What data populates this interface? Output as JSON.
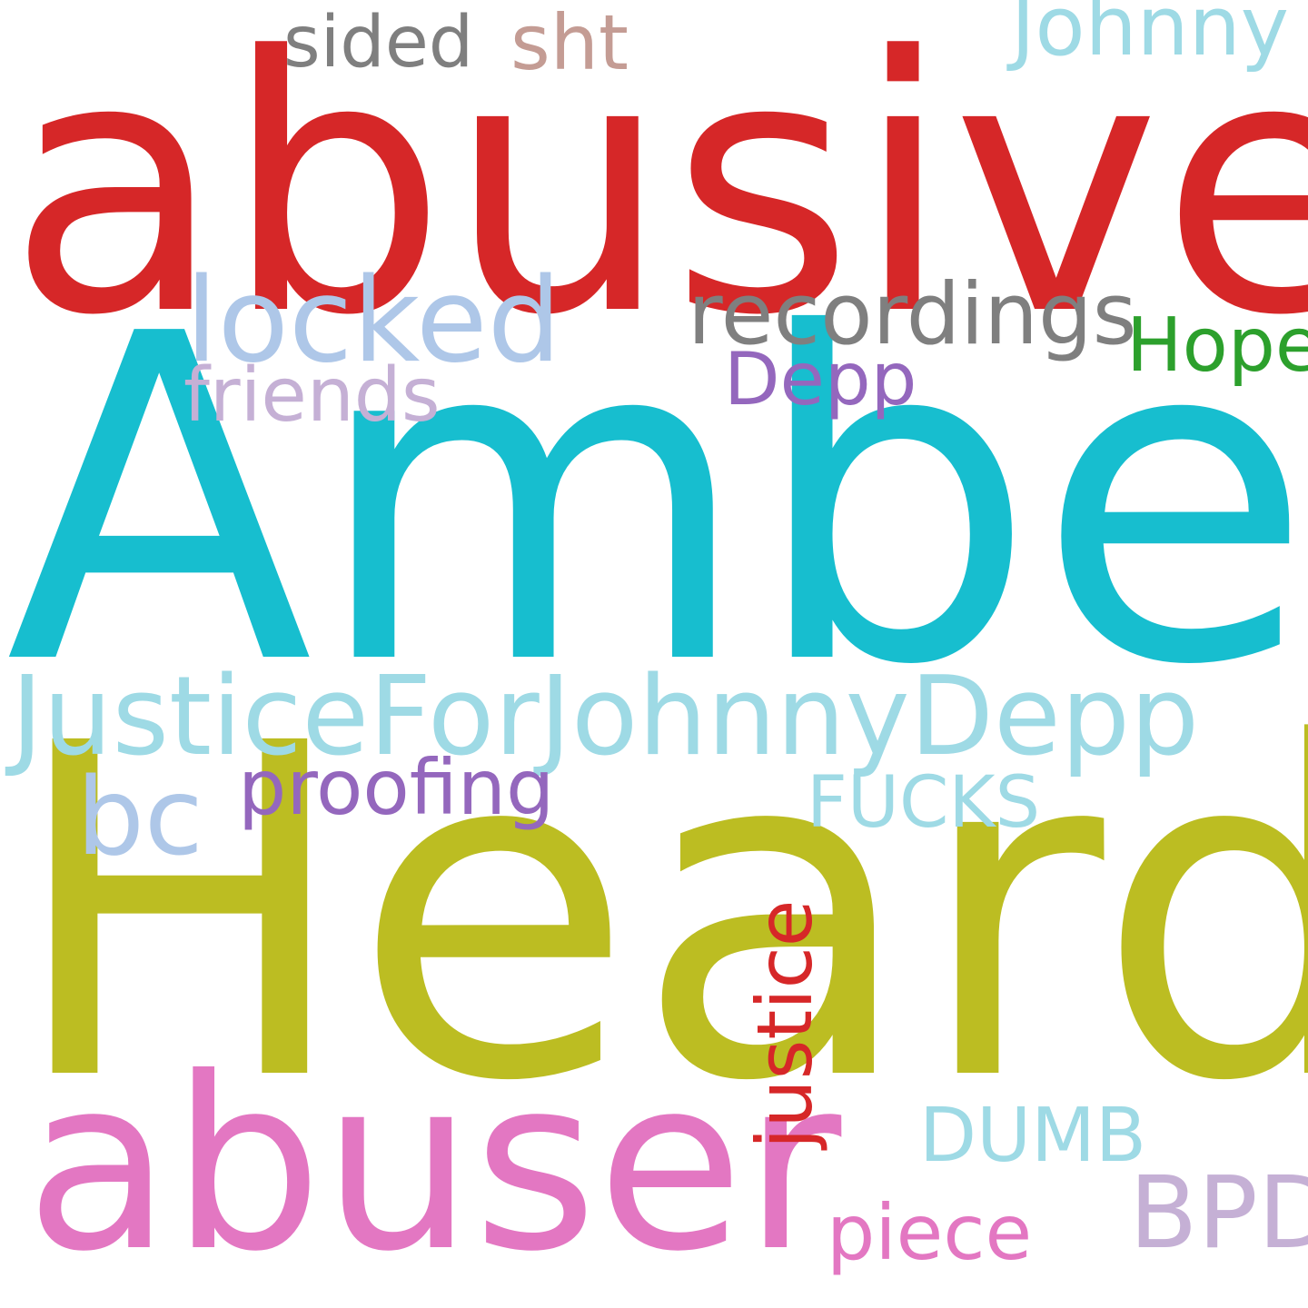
{
  "background": "#ffffff",
  "words": {
    "abusive": {
      "text": "abusive",
      "color": "#d62728"
    },
    "amber": {
      "text": "Amber",
      "color": "#17becf"
    },
    "heard": {
      "text": "Heard",
      "color": "#bcbd22"
    },
    "abuser": {
      "text": "abuser",
      "color": "#e377c2"
    },
    "justicefor": {
      "text": "JusticeForJohnnyDepp",
      "color": "#9edae5"
    },
    "locked": {
      "text": "locked",
      "color": "#aec7e8"
    },
    "recordings": {
      "text": "recordings",
      "color": "#7f7f7f"
    },
    "hope": {
      "text": "Hope",
      "color": "#2ca02c"
    },
    "depp": {
      "text": "Depp",
      "color": "#9467bd"
    },
    "friends": {
      "text": "friends",
      "color": "#c5b0d5"
    },
    "sided": {
      "text": "sided",
      "color": "#7f7f7f"
    },
    "sht": {
      "text": "sht",
      "color": "#c49c94"
    },
    "johnny": {
      "text": "Johnny",
      "color": "#9edae5"
    },
    "proofing": {
      "text": "proofing",
      "color": "#9467bd"
    },
    "bc": {
      "text": "bc",
      "color": "#aec7e8"
    },
    "fucks": {
      "text": "FUCKS",
      "color": "#9edae5"
    },
    "justice": {
      "text": "justice",
      "color": "#d62728"
    },
    "dumb": {
      "text": "DUMB",
      "color": "#9edae5"
    },
    "bpd": {
      "text": "BPD",
      "color": "#c5b0d5"
    },
    "piece": {
      "text": "piece",
      "color": "#e377c2"
    }
  }
}
